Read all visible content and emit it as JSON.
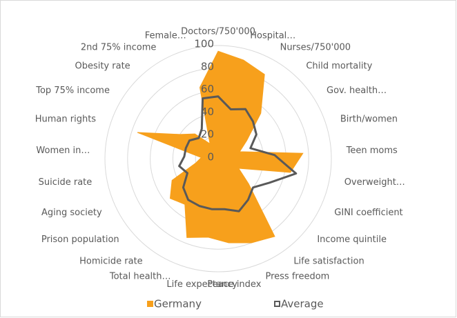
{
  "chart_data": {
    "type": "radar",
    "categories": [
      "Doctors/750'000",
      "Hospital…",
      "Nurses/750'000",
      "Child mortality",
      "Gov. health…",
      "Birth/women",
      "Teen moms",
      "Overweight…",
      "GINI coefficient",
      "Income quintile",
      "Life satisfaction",
      "Press freedom",
      "Peace index",
      "Life expectancy",
      "Total health…",
      "Homicide rate",
      "Prison population",
      "Aging society",
      "Suicide rate",
      "Women in…",
      "Human rights",
      "Top 75% income",
      "Obesity rate",
      "2nd 75% income",
      "Female…"
    ],
    "series": [
      {
        "name": "Germany",
        "color": "#f7a01c",
        "values": [
          95,
          90,
          85,
          55,
          30,
          20,
          75,
          65,
          20,
          35,
          85,
          80,
          75,
          70,
          75,
          50,
          55,
          45,
          20,
          15,
          75,
          40,
          30,
          15,
          65
        ]
      },
      {
        "name": "Average",
        "color": "#595959",
        "values": [
          55,
          45,
          50,
          45,
          40,
          30,
          50,
          70,
          50,
          40,
          45,
          50,
          45,
          45,
          45,
          45,
          40,
          30,
          35,
          30,
          30,
          30,
          25,
          30,
          55
        ]
      }
    ],
    "ylim": [
      0,
      100
    ],
    "yticks": [
      0,
      20,
      40,
      60,
      80,
      100
    ],
    "grid": true,
    "legend": "bottom"
  }
}
